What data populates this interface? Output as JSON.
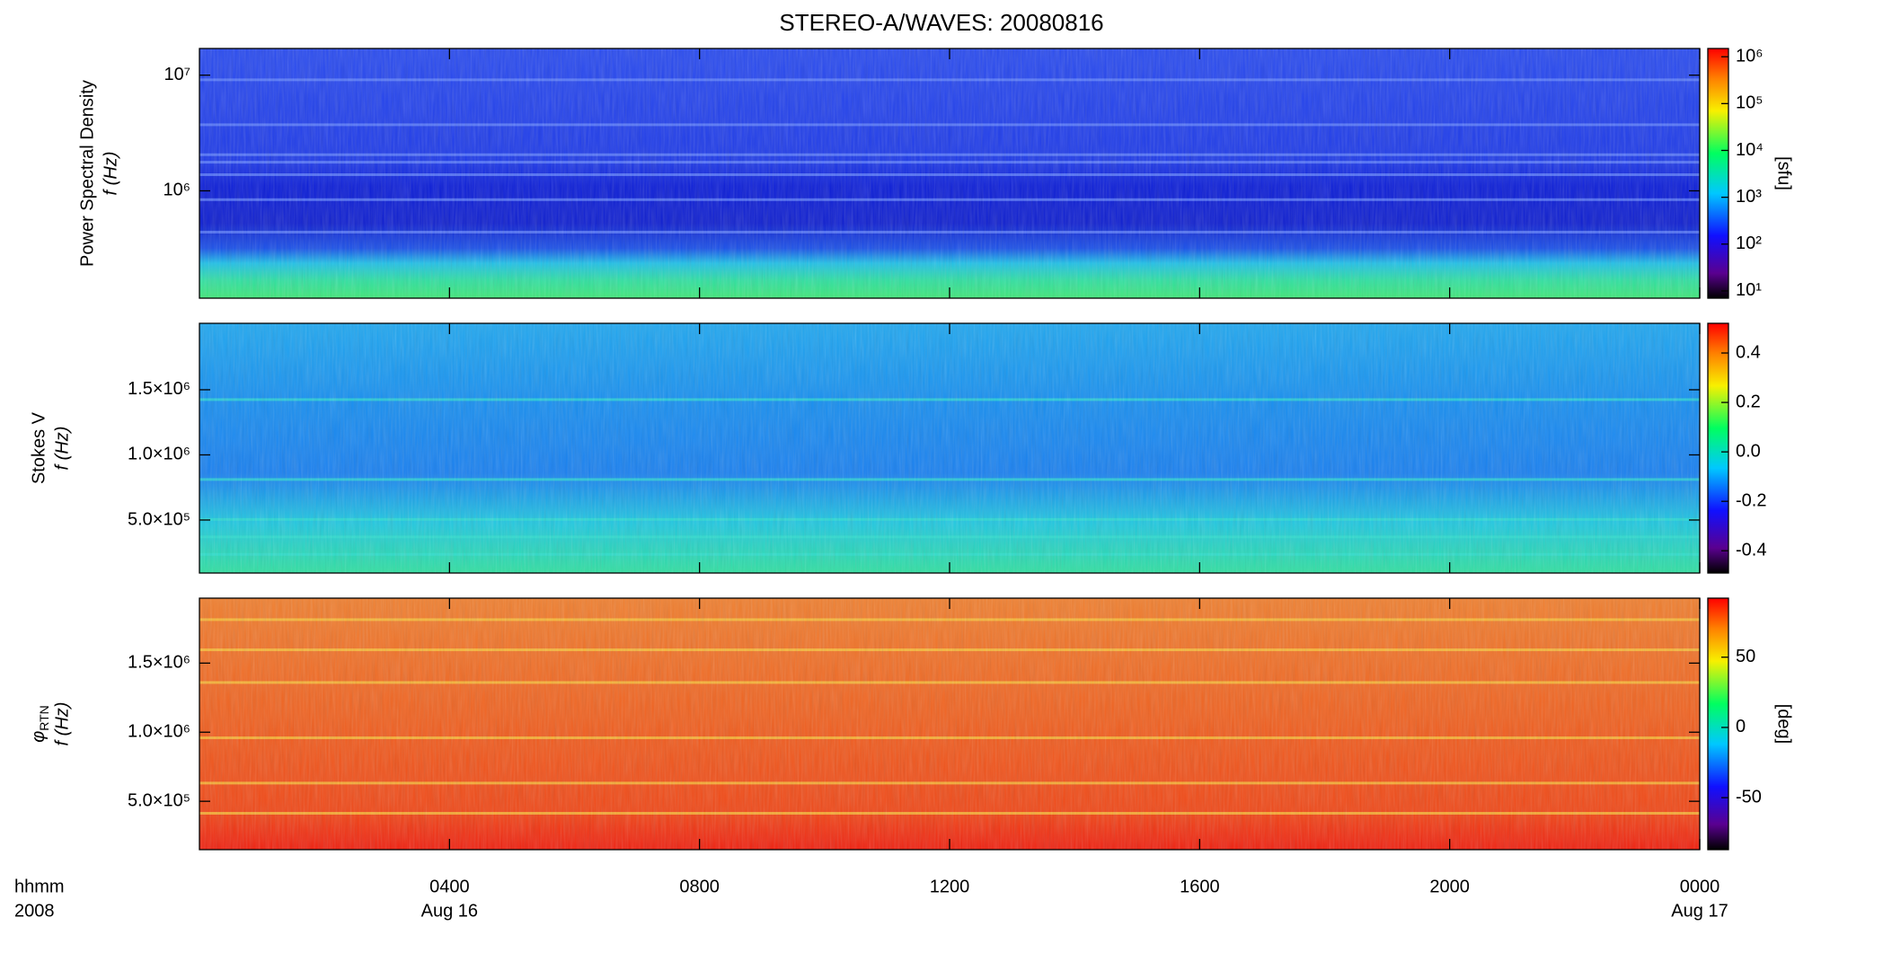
{
  "chart_data": [
    {
      "type": "heatmap",
      "title": "STEREO-A/WAVES: 20080816",
      "ylabel_top": "Power Spectral Density",
      "ylabel": "f (Hz)",
      "yscale": "log",
      "ylim": [
        118000,
        17000000
      ],
      "yticks": [
        {
          "value": 1000000,
          "label": "10⁶"
        },
        {
          "value": 10000000,
          "label": "10⁷"
        }
      ],
      "cscale": "log",
      "clim": [
        7,
        1500000
      ],
      "cticks": [
        {
          "value": 10,
          "label": "10¹"
        },
        {
          "value": 100,
          "label": "10²"
        },
        {
          "value": 1000,
          "label": "10³"
        },
        {
          "value": 10000,
          "label": "10⁴"
        },
        {
          "value": 100000,
          "label": "10⁵"
        },
        {
          "value": 1000000,
          "label": "10⁶"
        }
      ],
      "clabel": "[sfu]"
    },
    {
      "type": "heatmap",
      "ylabel_top": "Stokes V",
      "ylabel": "f (Hz)",
      "yscale": "linear",
      "ylim": [
        93000,
        2010000
      ],
      "yticks": [
        {
          "value": 500000,
          "label": "5.0×10⁵"
        },
        {
          "value": 1000000,
          "label": "1.0×10⁶"
        },
        {
          "value": 1500000,
          "label": "1.5×10⁶"
        }
      ],
      "cscale": "linear",
      "clim": [
        -0.49,
        0.52
      ],
      "cticks": [
        {
          "value": -0.4,
          "label": "-0.4"
        },
        {
          "value": -0.2,
          "label": "-0.2"
        },
        {
          "value": 0,
          "label": "0.0"
        },
        {
          "value": 0.2,
          "label": "0.2"
        },
        {
          "value": 0.4,
          "label": "0.4"
        }
      ]
    },
    {
      "type": "heatmap",
      "ylabel_symbol": "φ",
      "ylabel_sub": "RTN",
      "ylabel": "f (Hz)",
      "yscale": "linear",
      "ylim": [
        150000,
        1970000
      ],
      "yticks": [
        {
          "value": 500000,
          "label": "5.0×10⁵"
        },
        {
          "value": 1000000,
          "label": "1.0×10⁶"
        },
        {
          "value": 1500000,
          "label": "1.5×10⁶"
        }
      ],
      "cscale": "linear",
      "clim": [
        -87,
        92
      ],
      "cticks": [
        -50,
        0,
        50
      ],
      "clabel": "[deg]",
      "xlim": [
        0,
        24
      ],
      "xticks": [
        {
          "value": 4,
          "label": "0400"
        },
        {
          "value": 8,
          "label": "0800"
        },
        {
          "value": 12,
          "label": "1200"
        },
        {
          "value": 16,
          "label": "1600"
        },
        {
          "value": 20,
          "label": "2000"
        },
        {
          "value": 24,
          "label": "0000"
        }
      ],
      "xdates": [
        {
          "value": 4,
          "label": "Aug 16"
        },
        {
          "value": 24,
          "label": "Aug 17"
        }
      ],
      "xunit_label": "hhmm",
      "year": "2008"
    }
  ]
}
